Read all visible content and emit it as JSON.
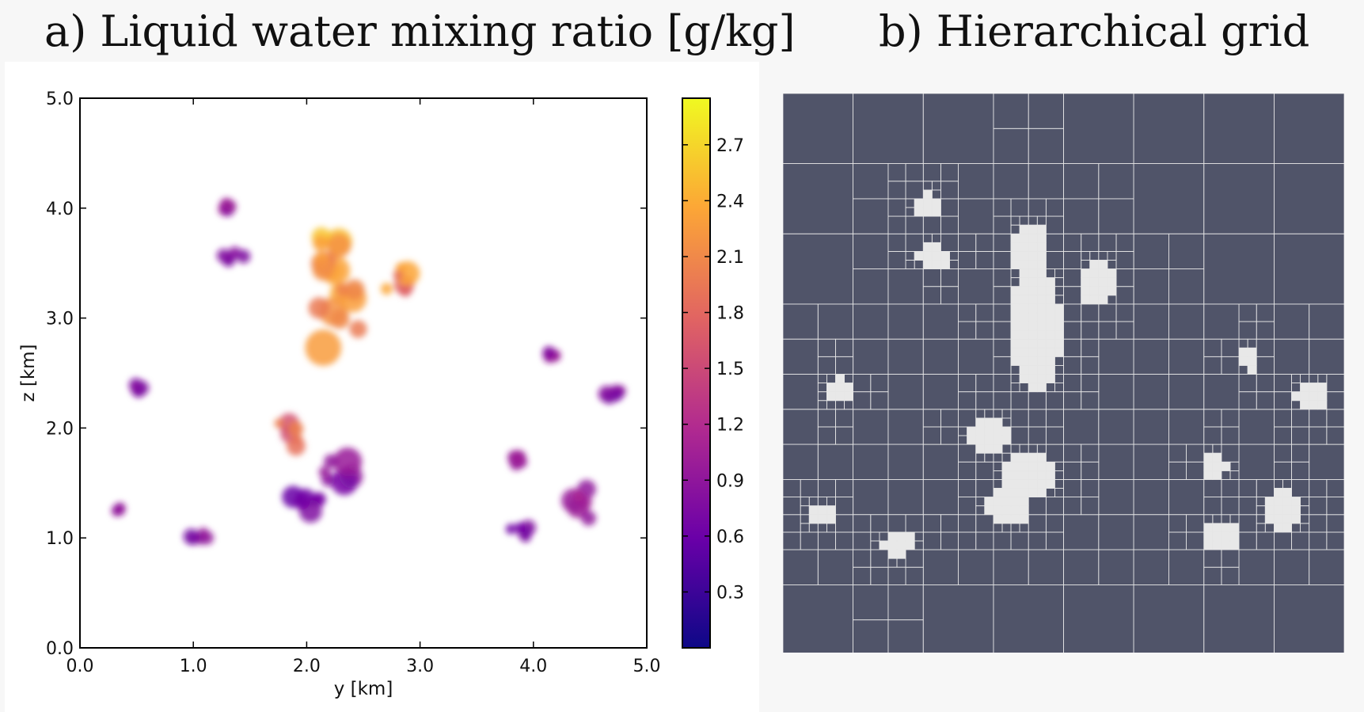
{
  "panel_a": {
    "title": "a) Liquid water mixing ratio [g/kg]",
    "xlabel": "y [km]",
    "ylabel": "z [km]"
  },
  "panel_b": {
    "title": "b) Hierarchical grid"
  },
  "colors": {
    "grid_background": "#505469",
    "grid_lines": "#e6e6e6",
    "cmap_low": "#0d0887",
    "cmap_mid": "#b12a90",
    "cmap_high": "#f0f921"
  },
  "chart_data": {
    "type": "heatmap",
    "title": "a) Liquid water mixing ratio [g/kg]",
    "xlabel": "y [km]",
    "ylabel": "z [km]",
    "xlim": [
      0,
      5
    ],
    "ylim": [
      0,
      5
    ],
    "xticks": [
      "0.0",
      "1.0",
      "2.0",
      "3.0",
      "4.0",
      "5.0"
    ],
    "yticks": [
      "0.0",
      "1.0",
      "2.0",
      "3.0",
      "4.0",
      "5.0"
    ],
    "colorbar": {
      "range": [
        0,
        2.95
      ],
      "ticks": [
        "0.3",
        "0.6",
        "0.9",
        "1.2",
        "1.5",
        "1.8",
        "2.1",
        "2.4",
        "2.7"
      ],
      "colormap": "plasma"
    },
    "features": [
      {
        "y": 2.25,
        "z": 2.9,
        "w": 0.5,
        "h": 1.7,
        "q": 2.4
      },
      {
        "y": 2.2,
        "z": 3.6,
        "w": 0.35,
        "h": 0.6,
        "q": 2.6
      },
      {
        "y": 2.8,
        "z": 3.3,
        "w": 0.3,
        "h": 0.4,
        "q": 2.2
      },
      {
        "y": 1.85,
        "z": 1.95,
        "w": 0.35,
        "h": 0.3,
        "q": 1.9
      },
      {
        "y": 2.2,
        "z": 1.6,
        "w": 0.55,
        "h": 0.35,
        "q": 0.9
      },
      {
        "y": 2.0,
        "z": 1.3,
        "w": 0.45,
        "h": 0.25,
        "q": 0.7
      },
      {
        "y": 4.45,
        "z": 1.3,
        "w": 0.35,
        "h": 0.35,
        "q": 1.1
      },
      {
        "y": 3.9,
        "z": 1.05,
        "w": 0.3,
        "h": 0.12,
        "q": 0.8
      },
      {
        "y": 1.05,
        "z": 1.0,
        "w": 0.25,
        "h": 0.12,
        "q": 0.9
      },
      {
        "y": 1.35,
        "z": 3.55,
        "w": 0.25,
        "h": 0.12,
        "q": 0.8
      },
      {
        "y": 1.3,
        "z": 4.0,
        "w": 0.08,
        "h": 0.08,
        "q": 1.0
      },
      {
        "y": 4.7,
        "z": 2.3,
        "w": 0.2,
        "h": 0.15,
        "q": 0.9
      },
      {
        "y": 4.15,
        "z": 2.65,
        "w": 0.12,
        "h": 0.1,
        "q": 1.0
      },
      {
        "y": 3.85,
        "z": 1.7,
        "w": 0.15,
        "h": 0.12,
        "q": 1.0
      },
      {
        "y": 0.5,
        "z": 2.35,
        "w": 0.12,
        "h": 0.1,
        "q": 0.9
      },
      {
        "y": 0.35,
        "z": 1.25,
        "w": 0.06,
        "h": 0.05,
        "q": 1.0
      }
    ]
  }
}
